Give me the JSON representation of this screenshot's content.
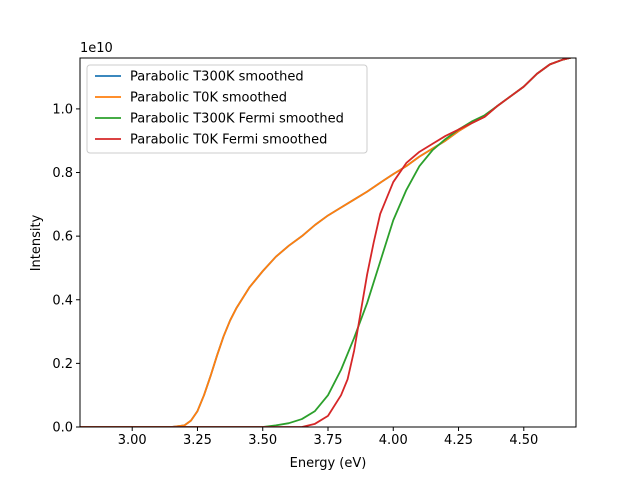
{
  "chart_data": {
    "type": "line",
    "title": "",
    "xlabel": "Energy (eV)",
    "ylabel": "Intensity",
    "y_multiplier_label": "1e10",
    "xlim": [
      2.8,
      4.7
    ],
    "ylim": [
      0,
      1.16
    ],
    "xticks": [
      3.0,
      3.25,
      3.5,
      3.75,
      4.0,
      4.25,
      4.5
    ],
    "xtick_labels": [
      "3.00",
      "3.25",
      "3.50",
      "3.75",
      "4.00",
      "4.25",
      "4.50"
    ],
    "yticks": [
      0.0,
      0.2,
      0.4,
      0.6,
      0.8,
      1.0
    ],
    "ytick_labels": [
      "0.0",
      "0.2",
      "0.4",
      "0.6",
      "0.8",
      "1.0"
    ],
    "grid": false,
    "legend_position": "top-left",
    "series": [
      {
        "name": "Parabolic T300K smoothed",
        "color": "#1f77b4",
        "x": [
          2.8,
          3.15,
          3.2,
          3.225,
          3.25,
          3.275,
          3.3,
          3.325,
          3.35,
          3.375,
          3.4,
          3.45,
          3.5,
          3.55,
          3.6,
          3.65,
          3.7,
          3.75,
          3.8,
          3.85,
          3.9,
          3.95,
          4.0,
          4.05,
          4.1,
          4.15,
          4.2,
          4.25,
          4.3,
          4.35,
          4.4,
          4.45,
          4.5,
          4.55,
          4.6,
          4.65,
          4.7
        ],
        "y": [
          0.0,
          0.0,
          0.005,
          0.02,
          0.05,
          0.1,
          0.16,
          0.225,
          0.285,
          0.335,
          0.375,
          0.44,
          0.49,
          0.535,
          0.57,
          0.6,
          0.635,
          0.665,
          0.69,
          0.715,
          0.74,
          0.768,
          0.795,
          0.82,
          0.85,
          0.875,
          0.9,
          0.93,
          0.955,
          0.975,
          1.01,
          1.04,
          1.07,
          1.11,
          1.14,
          1.155,
          1.165
        ]
      },
      {
        "name": "Parabolic T0K smoothed",
        "color": "#ff7f0e",
        "x": [
          2.8,
          3.15,
          3.2,
          3.225,
          3.25,
          3.275,
          3.3,
          3.325,
          3.35,
          3.375,
          3.4,
          3.45,
          3.5,
          3.55,
          3.6,
          3.65,
          3.7,
          3.75,
          3.8,
          3.85,
          3.9,
          3.95,
          4.0,
          4.05,
          4.1,
          4.15,
          4.2,
          4.25,
          4.3,
          4.35,
          4.4,
          4.45,
          4.5,
          4.55,
          4.6,
          4.65,
          4.7
        ],
        "y": [
          0.0,
          0.0,
          0.005,
          0.02,
          0.05,
          0.1,
          0.16,
          0.225,
          0.285,
          0.335,
          0.375,
          0.44,
          0.49,
          0.535,
          0.57,
          0.6,
          0.635,
          0.665,
          0.69,
          0.715,
          0.74,
          0.768,
          0.795,
          0.82,
          0.85,
          0.875,
          0.9,
          0.93,
          0.955,
          0.975,
          1.01,
          1.04,
          1.07,
          1.11,
          1.14,
          1.155,
          1.165
        ]
      },
      {
        "name": "Parabolic T300K Fermi smoothed",
        "color": "#2ca02c",
        "x": [
          2.8,
          3.5,
          3.55,
          3.6,
          3.65,
          3.7,
          3.75,
          3.8,
          3.85,
          3.9,
          3.95,
          4.0,
          4.05,
          4.1,
          4.15,
          4.2,
          4.25,
          4.3,
          4.35,
          4.4,
          4.45,
          4.5,
          4.55,
          4.6,
          4.65,
          4.7
        ],
        "y": [
          0.0,
          0.0,
          0.005,
          0.012,
          0.025,
          0.05,
          0.1,
          0.18,
          0.28,
          0.39,
          0.52,
          0.65,
          0.745,
          0.82,
          0.87,
          0.905,
          0.935,
          0.96,
          0.98,
          1.01,
          1.04,
          1.07,
          1.11,
          1.14,
          1.155,
          1.165
        ]
      },
      {
        "name": "Parabolic T0K Fermi smoothed",
        "color": "#d62728",
        "x": [
          2.8,
          3.65,
          3.7,
          3.75,
          3.8,
          3.825,
          3.85,
          3.875,
          3.9,
          3.925,
          3.95,
          3.975,
          4.0,
          4.05,
          4.1,
          4.15,
          4.2,
          4.25,
          4.3,
          4.35,
          4.4,
          4.45,
          4.5,
          4.55,
          4.6,
          4.65,
          4.7
        ],
        "y": [
          0.0,
          0.0,
          0.01,
          0.035,
          0.1,
          0.15,
          0.24,
          0.36,
          0.48,
          0.58,
          0.67,
          0.72,
          0.77,
          0.83,
          0.865,
          0.89,
          0.915,
          0.935,
          0.955,
          0.975,
          1.01,
          1.04,
          1.07,
          1.11,
          1.14,
          1.155,
          1.165
        ]
      }
    ]
  }
}
